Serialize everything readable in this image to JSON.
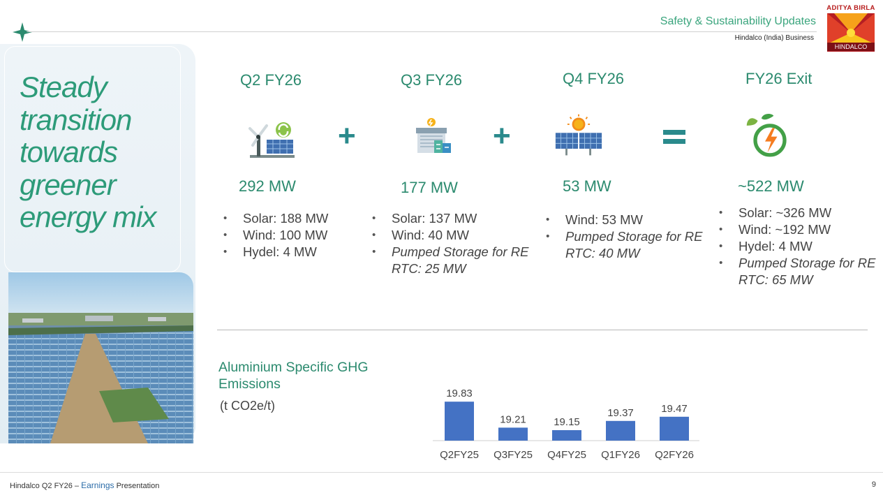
{
  "header": {
    "section_title": "Safety & Sustainability Updates",
    "business": "Hindalco (India) Business",
    "logo_top": "ADITYA BIRLA",
    "logo_name": "HINDALCO"
  },
  "headline": {
    "line1": "Steady",
    "line2": "transition",
    "line3": "towards",
    "line4": "greener",
    "line5": "energy mix"
  },
  "operators": {
    "plus": "+",
    "equals": "="
  },
  "columns": [
    {
      "title": "Q2 FY26",
      "icon": "wind-solar-icon",
      "capacity": "292 MW",
      "items": [
        {
          "text": "Solar: 188 MW"
        },
        {
          "text": "Wind: 100 MW"
        },
        {
          "text": "Hydel: 4 MW"
        }
      ]
    },
    {
      "title": "Q3 FY26",
      "icon": "pumped-storage-icon",
      "capacity": "177 MW",
      "items": [
        {
          "text": "Solar: 137 MW"
        },
        {
          "text": "Wind: 40 MW"
        },
        {
          "text": "Pumped Storage for RE RTC: 25 MW"
        }
      ]
    },
    {
      "title": "Q4 FY26",
      "icon": "sun-solar-panel-icon",
      "capacity": "53 MW",
      "items": [
        {
          "text": "Wind: 53 MW"
        },
        {
          "text": "Pumped Storage for RE RTC: 40 MW"
        }
      ]
    },
    {
      "title": "FY26 Exit",
      "icon": "green-energy-leaf-icon",
      "capacity": "~522 MW",
      "items": [
        {
          "text": "Solar: ~326 MW"
        },
        {
          "text": "Wind: ~192 MW"
        },
        {
          "text": "Hydel: 4 MW"
        },
        {
          "text": "Pumped Storage for RE RTC: 65 MW"
        }
      ]
    }
  ],
  "ghg": {
    "title_line1": "Aluminium Specific GHG",
    "title_line2": "Emissions",
    "unit": "(t CO2e/t)"
  },
  "chart_data": {
    "type": "bar",
    "categories": [
      "Q2FY25",
      "Q3FY25",
      "Q4FY25",
      "Q1FY26",
      "Q2FY26"
    ],
    "values": [
      19.83,
      19.21,
      19.15,
      19.37,
      19.47
    ],
    "value_labels": [
      "19.83",
      "19.21",
      "19.15",
      "19.37",
      "19.47"
    ],
    "title": "",
    "xlabel": "",
    "ylabel": "",
    "grid": false,
    "bar_color": "#4472c4"
  },
  "footer": {
    "deck_prefix": "Hindalco Q2 FY26 –",
    "deck_highlight": "Earnings",
    "deck_suffix": "Presentation",
    "page_number": "9"
  },
  "colors": {
    "accent_green": "#2b8a6e",
    "teal": "#2a8a8c",
    "brand_red": "#b51e23"
  }
}
